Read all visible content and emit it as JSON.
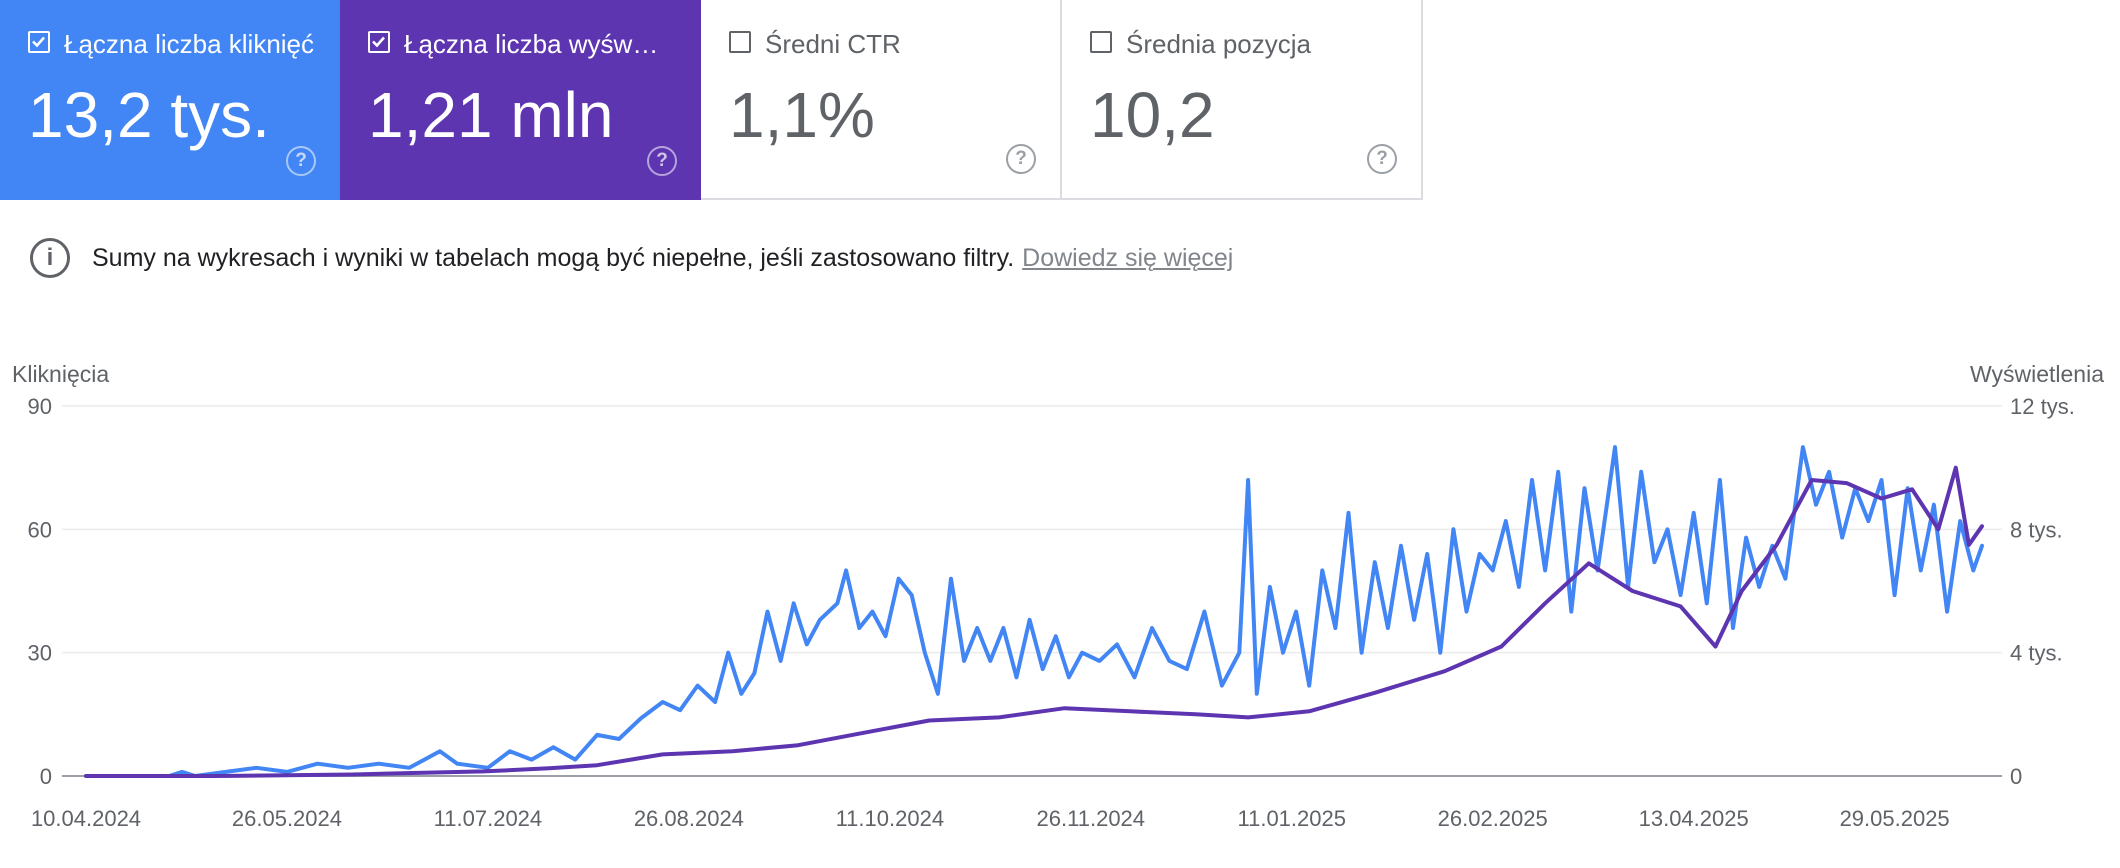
{
  "metrics": [
    {
      "label": "Łączna liczba kliknięć",
      "value": "13,2 tys.",
      "checked": true,
      "color": "#4285f4"
    },
    {
      "label": "Łączna liczba wyświetleń",
      "value": "1,21 mln",
      "checked": true,
      "color": "#5e35b1"
    },
    {
      "label": "Średni CTR",
      "value": "1,1%",
      "checked": false
    },
    {
      "label": "Średnia pozycja",
      "value": "10,2",
      "checked": false
    }
  ],
  "notice": {
    "text": "Sumy na wykresach i wyniki w tabelach mogą być niepełne, jeśli zastosowano filtry.",
    "link": "Dowiedz się więcej"
  },
  "icons": {
    "checkbox": "checkbox-icon",
    "help": "help-circle-icon",
    "info": "info-circle-icon"
  },
  "chart_data": {
    "type": "line",
    "y_left_label": "Kliknięcia",
    "y_right_label": "Wyświetlenia",
    "y_left_ticks": [
      "0",
      "30",
      "60",
      "90"
    ],
    "y_right_ticks": [
      "0",
      "4 tys.",
      "8 tys.",
      "12 tys."
    ],
    "ylim_left": [
      0,
      90
    ],
    "ylim_right": [
      0,
      12000
    ],
    "x_ticks": [
      "10.04.2024",
      "26.05.2024",
      "11.07.2024",
      "26.08.2024",
      "11.10.2024",
      "26.11.2024",
      "11.01.2025",
      "26.02.2025",
      "13.04.2025",
      "29.05.2025"
    ],
    "x_start": "2024-04-10",
    "x_end": "2025-06-18",
    "grid": true,
    "series": [
      {
        "name": "Kliknięcia",
        "axis": "left",
        "color": "#4285f4",
        "points": [
          [
            "2024-04-10",
            0
          ],
          [
            "2024-04-29",
            0
          ],
          [
            "2024-05-02",
            1
          ],
          [
            "2024-05-05",
            0
          ],
          [
            "2024-05-12",
            1
          ],
          [
            "2024-05-19",
            2
          ],
          [
            "2024-05-26",
            1
          ],
          [
            "2024-06-02",
            3
          ],
          [
            "2024-06-09",
            2
          ],
          [
            "2024-06-16",
            3
          ],
          [
            "2024-06-23",
            2
          ],
          [
            "2024-06-30",
            6
          ],
          [
            "2024-07-04",
            3
          ],
          [
            "2024-07-11",
            2
          ],
          [
            "2024-07-16",
            6
          ],
          [
            "2024-07-21",
            4
          ],
          [
            "2024-07-26",
            7
          ],
          [
            "2024-07-31",
            4
          ],
          [
            "2024-08-05",
            10
          ],
          [
            "2024-08-10",
            9
          ],
          [
            "2024-08-15",
            14
          ],
          [
            "2024-08-20",
            18
          ],
          [
            "2024-08-24",
            16
          ],
          [
            "2024-08-28",
            22
          ],
          [
            "2024-09-01",
            18
          ],
          [
            "2024-09-04",
            30
          ],
          [
            "2024-09-07",
            20
          ],
          [
            "2024-09-10",
            25
          ],
          [
            "2024-09-13",
            40
          ],
          [
            "2024-09-16",
            28
          ],
          [
            "2024-09-19",
            42
          ],
          [
            "2024-09-22",
            32
          ],
          [
            "2024-09-25",
            38
          ],
          [
            "2024-09-29",
            42
          ],
          [
            "2024-10-01",
            50
          ],
          [
            "2024-10-04",
            36
          ],
          [
            "2024-10-07",
            40
          ],
          [
            "2024-10-10",
            34
          ],
          [
            "2024-10-13",
            48
          ],
          [
            "2024-10-16",
            44
          ],
          [
            "2024-10-19",
            30
          ],
          [
            "2024-10-22",
            20
          ],
          [
            "2024-10-25",
            48
          ],
          [
            "2024-10-28",
            28
          ],
          [
            "2024-10-31",
            36
          ],
          [
            "2024-11-03",
            28
          ],
          [
            "2024-11-06",
            36
          ],
          [
            "2024-11-09",
            24
          ],
          [
            "2024-11-12",
            38
          ],
          [
            "2024-11-15",
            26
          ],
          [
            "2024-11-18",
            34
          ],
          [
            "2024-11-21",
            24
          ],
          [
            "2024-11-24",
            30
          ],
          [
            "2024-11-28",
            28
          ],
          [
            "2024-12-02",
            32
          ],
          [
            "2024-12-06",
            24
          ],
          [
            "2024-12-10",
            36
          ],
          [
            "2024-12-14",
            28
          ],
          [
            "2024-12-18",
            26
          ],
          [
            "2024-12-22",
            40
          ],
          [
            "2024-12-26",
            22
          ],
          [
            "2024-12-30",
            30
          ],
          [
            "2025-01-01",
            72
          ],
          [
            "2025-01-03",
            20
          ],
          [
            "2025-01-06",
            46
          ],
          [
            "2025-01-09",
            30
          ],
          [
            "2025-01-12",
            40
          ],
          [
            "2025-01-15",
            22
          ],
          [
            "2025-01-18",
            50
          ],
          [
            "2025-01-21",
            36
          ],
          [
            "2025-01-24",
            64
          ],
          [
            "2025-01-27",
            30
          ],
          [
            "2025-01-30",
            52
          ],
          [
            "2025-02-02",
            36
          ],
          [
            "2025-02-05",
            56
          ],
          [
            "2025-02-08",
            38
          ],
          [
            "2025-02-11",
            54
          ],
          [
            "2025-02-14",
            30
          ],
          [
            "2025-02-17",
            60
          ],
          [
            "2025-02-20",
            40
          ],
          [
            "2025-02-23",
            54
          ],
          [
            "2025-02-26",
            50
          ],
          [
            "2025-03-01",
            62
          ],
          [
            "2025-03-04",
            46
          ],
          [
            "2025-03-07",
            72
          ],
          [
            "2025-03-10",
            50
          ],
          [
            "2025-03-13",
            74
          ],
          [
            "2025-03-16",
            40
          ],
          [
            "2025-03-19",
            70
          ],
          [
            "2025-03-22",
            50
          ],
          [
            "2025-03-26",
            80
          ],
          [
            "2025-03-29",
            46
          ],
          [
            "2025-04-01",
            74
          ],
          [
            "2025-04-04",
            52
          ],
          [
            "2025-04-07",
            60
          ],
          [
            "2025-04-10",
            44
          ],
          [
            "2025-04-13",
            64
          ],
          [
            "2025-04-16",
            42
          ],
          [
            "2025-04-19",
            72
          ],
          [
            "2025-04-22",
            36
          ],
          [
            "2025-04-25",
            58
          ],
          [
            "2025-04-28",
            46
          ],
          [
            "2025-05-01",
            56
          ],
          [
            "2025-05-04",
            48
          ],
          [
            "2025-05-08",
            80
          ],
          [
            "2025-05-11",
            66
          ],
          [
            "2025-05-14",
            74
          ],
          [
            "2025-05-17",
            58
          ],
          [
            "2025-05-20",
            70
          ],
          [
            "2025-05-23",
            62
          ],
          [
            "2025-05-26",
            72
          ],
          [
            "2025-05-29",
            44
          ],
          [
            "2025-06-01",
            70
          ],
          [
            "2025-06-04",
            50
          ],
          [
            "2025-06-07",
            66
          ],
          [
            "2025-06-10",
            40
          ],
          [
            "2025-06-13",
            62
          ],
          [
            "2025-06-16",
            50
          ],
          [
            "2025-06-18",
            56
          ]
        ]
      },
      {
        "name": "Wyświetlenia",
        "axis": "right",
        "color": "#5e35b1",
        "points": [
          [
            "2024-04-10",
            0
          ],
          [
            "2024-05-10",
            0
          ],
          [
            "2024-06-10",
            50
          ],
          [
            "2024-06-25",
            100
          ],
          [
            "2024-07-10",
            150
          ],
          [
            "2024-07-25",
            250
          ],
          [
            "2024-08-05",
            350
          ],
          [
            "2024-08-20",
            700
          ],
          [
            "2024-09-05",
            800
          ],
          [
            "2024-09-20",
            1000
          ],
          [
            "2024-10-05",
            1400
          ],
          [
            "2024-10-20",
            1800
          ],
          [
            "2024-11-05",
            1900
          ],
          [
            "2024-11-20",
            2200
          ],
          [
            "2024-12-05",
            2100
          ],
          [
            "2024-12-20",
            2000
          ],
          [
            "2025-01-01",
            1900
          ],
          [
            "2025-01-15",
            2100
          ],
          [
            "2025-01-30",
            2700
          ],
          [
            "2025-02-15",
            3400
          ],
          [
            "2025-02-28",
            4200
          ],
          [
            "2025-03-10",
            5600
          ],
          [
            "2025-03-20",
            6900
          ],
          [
            "2025-03-30",
            6000
          ],
          [
            "2025-04-10",
            5500
          ],
          [
            "2025-04-18",
            4200
          ],
          [
            "2025-04-24",
            6000
          ],
          [
            "2025-05-02",
            7500
          ],
          [
            "2025-05-10",
            9600
          ],
          [
            "2025-05-18",
            9500
          ],
          [
            "2025-05-26",
            9000
          ],
          [
            "2025-06-02",
            9300
          ],
          [
            "2025-06-08",
            8000
          ],
          [
            "2025-06-12",
            10000
          ],
          [
            "2025-06-15",
            7500
          ],
          [
            "2025-06-18",
            8100
          ]
        ]
      }
    ]
  }
}
